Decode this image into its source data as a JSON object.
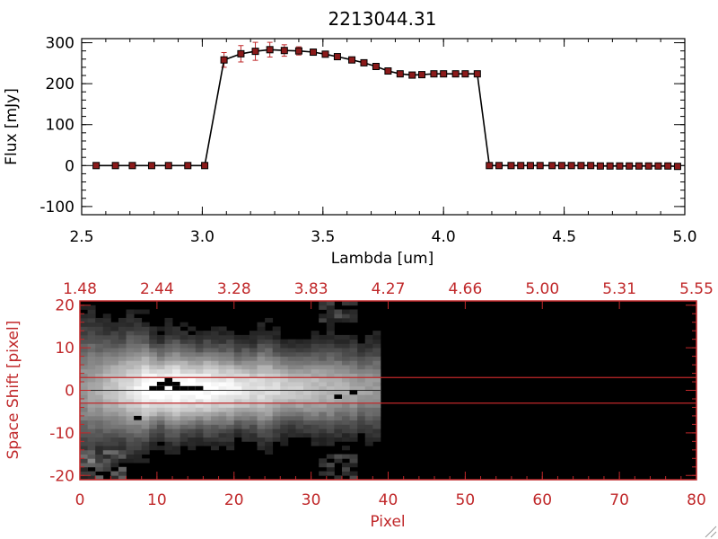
{
  "chart_data": [
    {
      "type": "line",
      "title": "2213044.31",
      "xlabel": "Lambda [um]",
      "ylabel": "Flux [mJy]",
      "xlim": [
        2.5,
        5.0
      ],
      "ylim": [
        -120,
        310
      ],
      "xticks": [
        "2.5",
        "3.0",
        "3.5",
        "4.0",
        "4.5",
        "5.0"
      ],
      "xtick_values": [
        2.5,
        3.0,
        3.5,
        4.0,
        4.5,
        5.0
      ],
      "yticks": [
        "-100",
        "0",
        "100",
        "200",
        "300"
      ],
      "ytick_values": [
        -100,
        0,
        100,
        200,
        300
      ],
      "grid": false,
      "line_color": "#000000",
      "marker_color": "#8b1a1a",
      "errorbar_color": "#c0282a",
      "zero_line_color": "#c0282a",
      "series": [
        {
          "x": [
            2.56,
            2.64,
            2.71,
            2.79,
            2.86,
            2.94,
            3.01,
            3.09,
            3.16,
            3.22,
            3.28,
            3.34,
            3.4,
            3.46,
            3.51,
            3.56,
            3.62,
            3.67,
            3.72,
            3.77,
            3.82,
            3.87,
            3.91,
            3.96,
            4.0,
            4.05,
            4.09,
            4.14,
            4.19,
            4.23,
            4.28,
            4.32,
            4.36,
            4.4,
            4.45,
            4.49,
            4.53,
            4.57,
            4.61,
            4.65,
            4.69,
            4.73,
            4.77,
            4.81,
            4.85,
            4.89,
            4.93,
            4.97
          ],
          "y": [
            0,
            0,
            0,
            0,
            0,
            0,
            0,
            258,
            273,
            279,
            283,
            281,
            280,
            277,
            272,
            266,
            258,
            251,
            242,
            231,
            224,
            221,
            222,
            224,
            224,
            224,
            224,
            224,
            0,
            0,
            0,
            0,
            0,
            0,
            0,
            0,
            0,
            0,
            0,
            -1,
            -1,
            -1,
            -1,
            -1,
            -1,
            -1,
            -1,
            -2
          ],
          "yerr": [
            0,
            0,
            0,
            0,
            0,
            0,
            0,
            18,
            20,
            22,
            18,
            14,
            10,
            6,
            4,
            3,
            3,
            3,
            3,
            3,
            3,
            3,
            3,
            3,
            3,
            3,
            3,
            3,
            0,
            0,
            0,
            0,
            0,
            0,
            0,
            0,
            0,
            0,
            0,
            0,
            0,
            0,
            0,
            0,
            0,
            0,
            0,
            0
          ]
        }
      ]
    },
    {
      "type": "heatmap",
      "xlabel": "Pixel",
      "ylabel": "Space Shift [pixel]",
      "xlim": [
        0,
        80
      ],
      "ylim": [
        -21,
        21
      ],
      "xticks": [
        "0",
        "10",
        "20",
        "30",
        "40",
        "50",
        "60",
        "70",
        "80"
      ],
      "xtick_values": [
        0,
        10,
        20,
        30,
        40,
        50,
        60,
        70,
        80
      ],
      "yticks": [
        "-20",
        "-10",
        "0",
        "10",
        "20"
      ],
      "ytick_values": [
        -20,
        -10,
        0,
        10,
        20
      ],
      "top_axis_ticks": [
        "1.48",
        "2.44",
        "3.28",
        "3.83",
        "4.27",
        "4.66",
        "5.00",
        "5.31",
        "5.55"
      ],
      "aperture_lines": [
        3,
        -3
      ],
      "signal_extent_pixels": [
        0,
        39
      ],
      "colormap": "grayscale",
      "axis_color": "#c0282a",
      "aperture_color": "#c0282a"
    }
  ]
}
